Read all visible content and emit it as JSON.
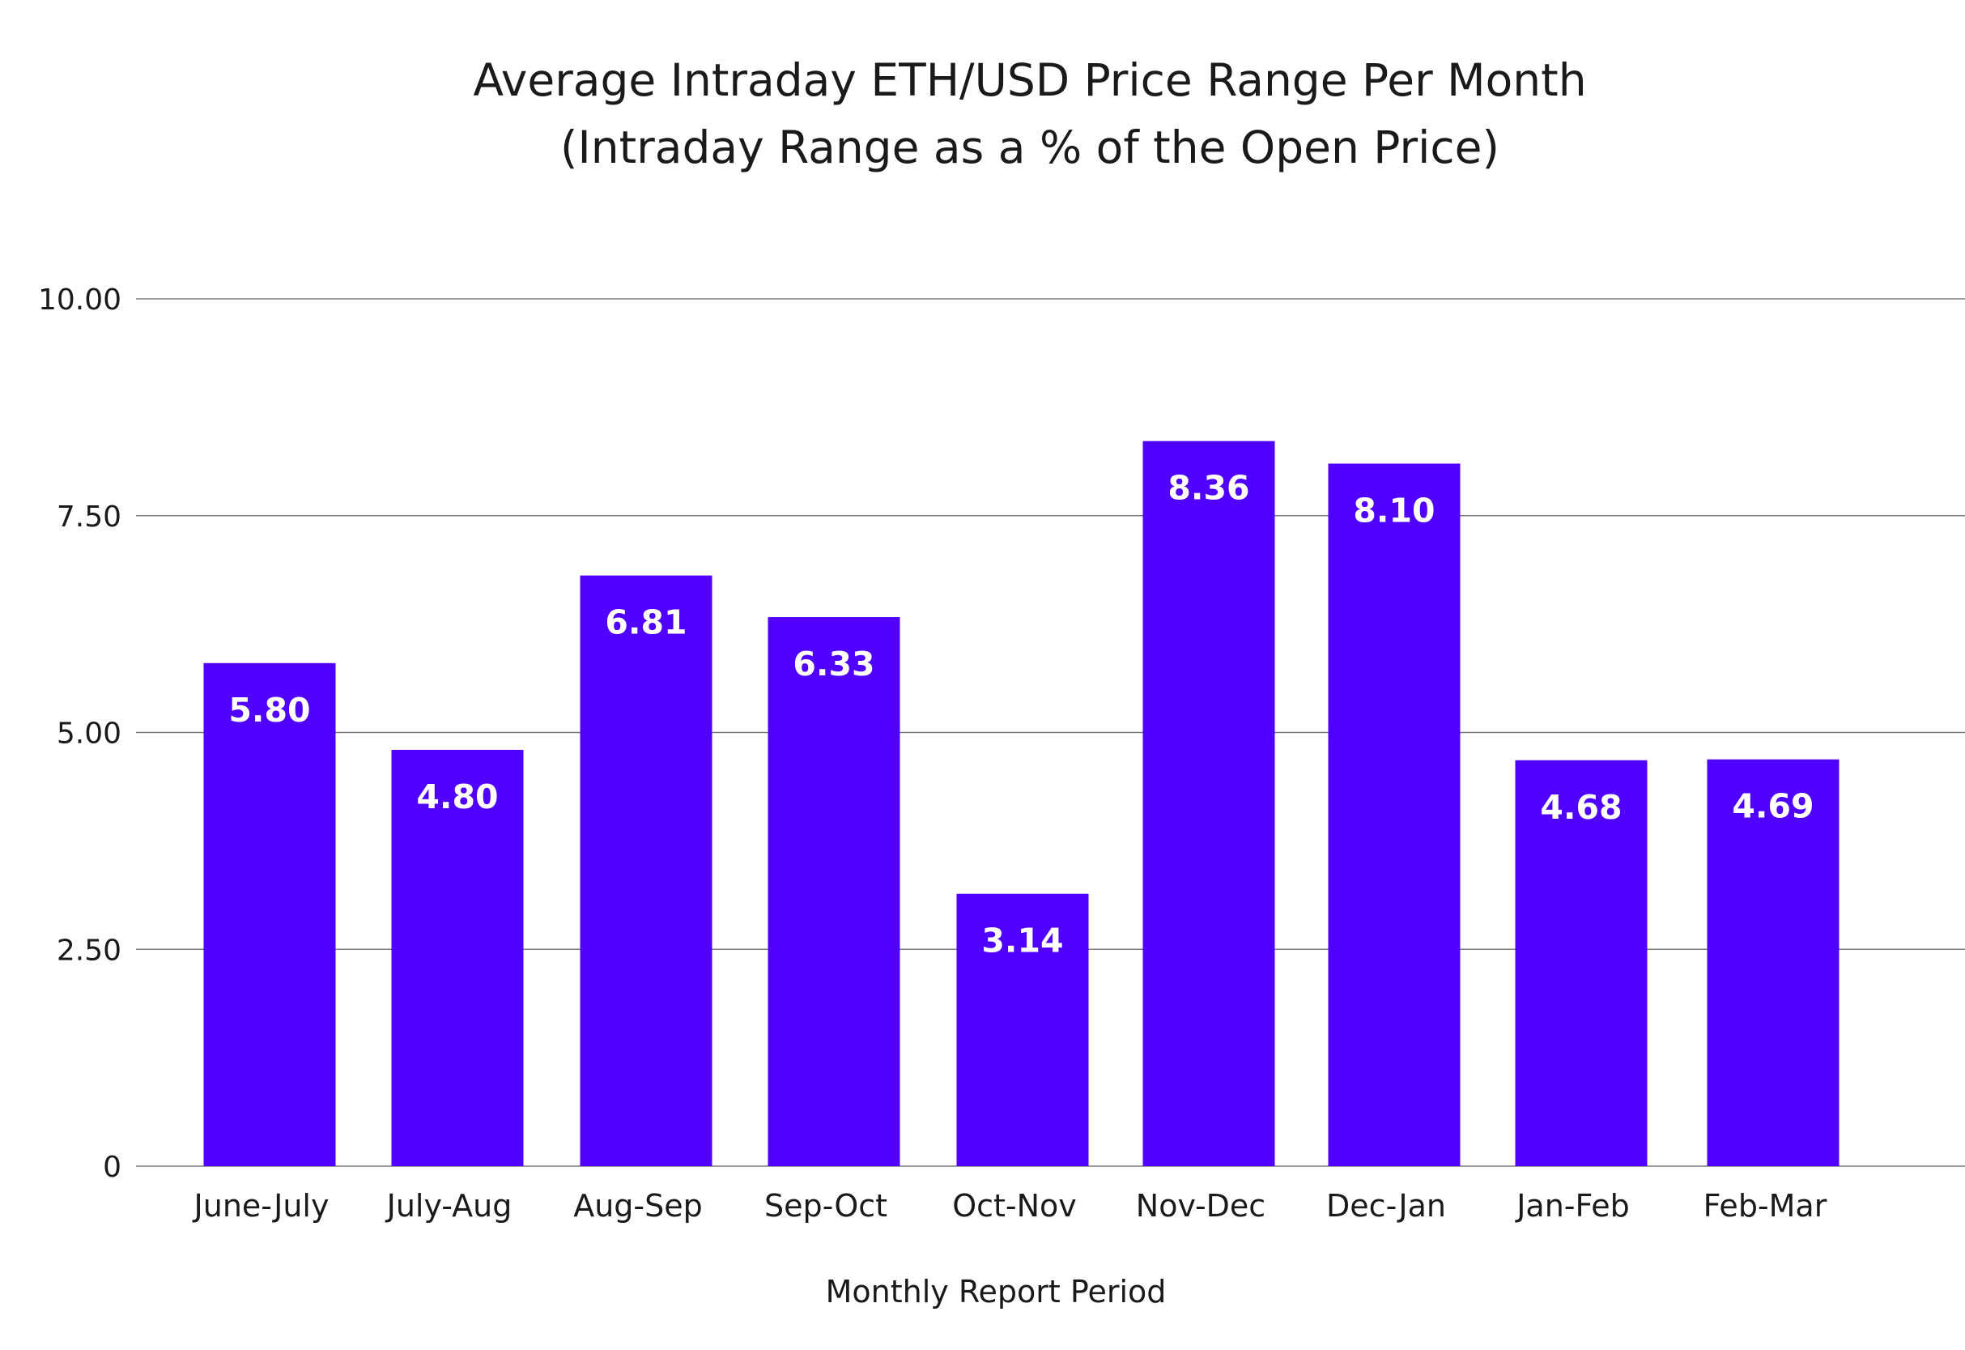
{
  "chart_data": {
    "type": "bar",
    "title": "Average Intraday ETH/USD Price Range Per Month",
    "subtitle": "(Intraday Range as a % of the Open Price)",
    "xlabel": "Monthly Report Period",
    "ylabel": "",
    "categories": [
      "June-July",
      "July-Aug",
      "Aug-Sep",
      "Sep-Oct",
      "Oct-Nov",
      "Nov-Dec",
      "Dec-Jan",
      "Jan-Feb",
      "Feb-Mar"
    ],
    "values": [
      5.8,
      4.8,
      6.81,
      6.33,
      3.14,
      8.36,
      8.1,
      4.68,
      4.69
    ],
    "value_labels": [
      "5.80",
      "4.80",
      "6.81",
      "6.33",
      "3.14",
      "8.36",
      "8.10",
      "4.68",
      "4.69"
    ],
    "ylim": [
      0,
      10
    ],
    "yticks": [
      0,
      2.5,
      5,
      7.5,
      10
    ],
    "ytick_labels": [
      "0",
      "2.50",
      "5.00",
      "7.50",
      "10.00"
    ],
    "grid": true,
    "legend": "none",
    "colors": {
      "bar": "#5000FF",
      "grid": "#7a7a7a",
      "text": "#1a1a1a",
      "data_label": "#ffffff"
    }
  }
}
